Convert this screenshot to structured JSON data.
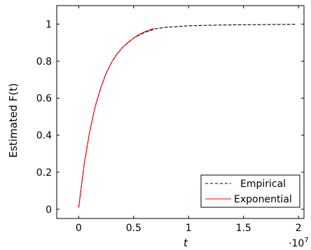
{
  "chart_data": {
    "type": "line",
    "title": "",
    "xlabel": "t",
    "ylabel": "Estimated F(t)",
    "x_multiplier_label": "·10",
    "x_multiplier_exponent": "7",
    "xlim": [
      -0.2,
      2.05
    ],
    "ylim": [
      -0.05,
      1.1
    ],
    "x_ticks": [
      0,
      0.5,
      1,
      1.5,
      2
    ],
    "x_tick_labels": [
      "0",
      "0.5",
      "1",
      "1.5",
      "2"
    ],
    "y_ticks": [
      0,
      0.2,
      0.4,
      0.6,
      0.8,
      1
    ],
    "y_tick_labels": [
      "0",
      "0.2",
      "0.4",
      "0.6",
      "0.8",
      "1"
    ],
    "grid": false,
    "legend_position": "bottom-right",
    "series": [
      {
        "name": "Empirical",
        "color": "#000000",
        "dash": "dashed",
        "x": [
          0,
          0.05,
          0.1,
          0.15,
          0.2,
          0.25,
          0.3,
          0.35,
          0.4,
          0.5,
          0.6,
          0.7,
          0.8,
          1.0,
          1.2,
          1.4,
          1.6,
          1.8,
          1.97
        ],
        "y": [
          0.01,
          0.245,
          0.42,
          0.555,
          0.655,
          0.735,
          0.795,
          0.84,
          0.875,
          0.925,
          0.955,
          0.975,
          0.983,
          0.991,
          0.994,
          0.996,
          0.997,
          0.998,
          0.999
        ]
      },
      {
        "name": "Exponential",
        "color": "#ff0000",
        "dash": "solid",
        "x": [
          0,
          0.05,
          0.1,
          0.15,
          0.2,
          0.25,
          0.3,
          0.35,
          0.4,
          0.45,
          0.5,
          0.55,
          0.6,
          0.68
        ],
        "y": [
          0.01,
          0.245,
          0.42,
          0.555,
          0.655,
          0.735,
          0.795,
          0.84,
          0.875,
          0.902,
          0.925,
          0.944,
          0.958,
          0.977
        ]
      }
    ]
  }
}
